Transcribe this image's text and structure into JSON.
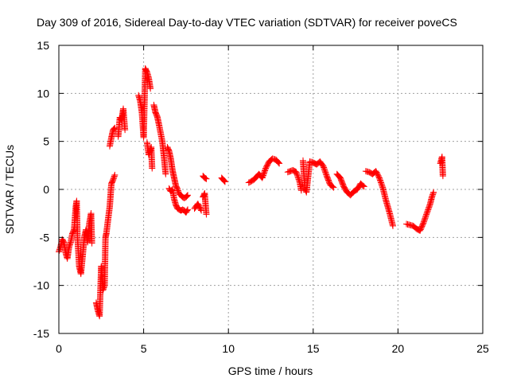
{
  "chart_data": {
    "type": "scatter",
    "title": "Day 309 of 2016, Sidereal Day-to-day VTEC variation (SDTVAR) for receiver poveCS",
    "xlabel": "GPS time / hours",
    "ylabel": "SDTVAR / TECUs",
    "xlim": [
      0,
      25
    ],
    "ylim": [
      -15,
      15
    ],
    "xticks": [
      0,
      5,
      10,
      15,
      20,
      25
    ],
    "yticks": [
      -15,
      -10,
      -5,
      0,
      5,
      10,
      15
    ],
    "xtick_labels": [
      "0",
      "5",
      "10",
      "15",
      "20",
      "25"
    ],
    "ytick_labels": [
      "-15",
      "-10",
      "-5",
      "0",
      "5",
      "10",
      "15"
    ],
    "grid": true,
    "marker": "+",
    "series": [
      {
        "name": "SDTVAR",
        "color": "#ff0000",
        "segments": [
          [
            [
              0.0,
              -6.5
            ],
            [
              0.1,
              -6.0
            ],
            [
              0.2,
              -5.2
            ],
            [
              0.3,
              -5.5
            ],
            [
              0.4,
              -6.6
            ],
            [
              0.5,
              -7.2
            ],
            [
              0.6,
              -6.0
            ],
            [
              0.7,
              -5.5
            ],
            [
              0.8,
              -4.6
            ],
            [
              0.9,
              -4.2
            ],
            [
              1.0,
              -1.8
            ],
            [
              1.05,
              -1.2
            ],
            [
              1.1,
              -5.0
            ],
            [
              1.2,
              -8.0
            ],
            [
              1.3,
              -8.8
            ],
            [
              1.4,
              -7.0
            ],
            [
              1.5,
              -5.0
            ],
            [
              1.6,
              -4.2
            ],
            [
              1.7,
              -5.5
            ],
            [
              1.8,
              -3.5
            ],
            [
              1.9,
              -2.5
            ],
            [
              1.95,
              -5.6
            ]
          ],
          [
            [
              2.2,
              -11.8
            ],
            [
              2.3,
              -12.6
            ],
            [
              2.4,
              -13.2
            ],
            [
              2.5,
              -8.0
            ],
            [
              2.6,
              -10.5
            ],
            [
              2.7,
              -10.0
            ],
            [
              2.75,
              -5.0
            ],
            [
              2.8,
              -4.6
            ],
            [
              2.9,
              -3.2
            ],
            [
              3.0,
              -1.8
            ],
            [
              3.1,
              0.6
            ],
            [
              3.2,
              1.0
            ],
            [
              3.3,
              1.5
            ]
          ],
          [
            [
              3.0,
              4.5
            ],
            [
              3.1,
              5.4
            ],
            [
              3.2,
              6.2
            ],
            [
              3.3,
              6.4
            ]
          ],
          [
            [
              3.5,
              5.5
            ],
            [
              3.6,
              7.5
            ],
            [
              3.7,
              7.2
            ],
            [
              3.8,
              8.4
            ],
            [
              3.9,
              6.2
            ]
          ],
          [
            [
              4.7,
              9.8
            ],
            [
              4.8,
              9.2
            ],
            [
              4.9,
              8.0
            ],
            [
              5.0,
              5.4
            ],
            [
              5.1,
              12.6
            ],
            [
              5.2,
              12.2
            ],
            [
              5.3,
              11.6
            ],
            [
              5.4,
              10.5
            ]
          ],
          [
            [
              5.2,
              4.9
            ],
            [
              5.3,
              3.6
            ],
            [
              5.45,
              4.4
            ],
            [
              5.5,
              2.2
            ]
          ],
          [
            [
              5.6,
              8.8
            ],
            [
              5.7,
              8.0
            ],
            [
              5.8,
              7.6
            ],
            [
              5.9,
              6.8
            ],
            [
              6.0,
              5.9
            ],
            [
              6.1,
              5.0
            ],
            [
              6.2,
              3.4
            ],
            [
              6.3,
              1.6
            ]
          ],
          [
            [
              6.4,
              4.4
            ],
            [
              6.5,
              4.0
            ],
            [
              6.6,
              3.2
            ],
            [
              6.7,
              2.0
            ],
            [
              6.8,
              1.2
            ],
            [
              6.9,
              0.4
            ],
            [
              7.0,
              0.0
            ],
            [
              7.1,
              -0.5
            ],
            [
              7.2,
              -0.6
            ],
            [
              7.3,
              -0.8
            ],
            [
              7.4,
              -0.9
            ],
            [
              7.5,
              -0.8
            ],
            [
              7.6,
              -0.6
            ]
          ],
          [
            [
              6.5,
              0.1
            ],
            [
              6.6,
              -0.2
            ],
            [
              6.7,
              0.0
            ],
            [
              6.8,
              -1.0
            ],
            [
              6.9,
              -1.6
            ],
            [
              7.0,
              -2.0
            ],
            [
              7.1,
              -2.1
            ],
            [
              7.2,
              -2.2
            ],
            [
              7.3,
              -2.1
            ],
            [
              7.4,
              -2.2
            ],
            [
              7.5,
              -2.4
            ],
            [
              7.6,
              -2.1
            ]
          ],
          [
            [
              8.0,
              -2.0
            ],
            [
              8.2,
              -1.5
            ],
            [
              8.4,
              -2.2
            ]
          ],
          [
            [
              8.5,
              -0.8
            ],
            [
              8.6,
              -0.4
            ],
            [
              8.7,
              -2.6
            ]
          ],
          [
            [
              8.5,
              1.4
            ],
            [
              8.6,
              1.2
            ],
            [
              8.7,
              1.1
            ]
          ],
          [
            [
              9.6,
              1.2
            ],
            [
              9.7,
              1.0
            ],
            [
              9.8,
              0.8
            ]
          ],
          [
            [
              11.2,
              0.7
            ],
            [
              11.5,
              1.0
            ],
            [
              11.8,
              1.6
            ],
            [
              12.0,
              1.2
            ],
            [
              12.2,
              2.2
            ],
            [
              12.4,
              2.9
            ],
            [
              12.6,
              3.2
            ],
            [
              12.8,
              3.1
            ],
            [
              13.0,
              2.7
            ]
          ],
          [
            [
              13.5,
              1.8
            ],
            [
              13.8,
              2.0
            ],
            [
              14.0,
              1.8
            ],
            [
              14.2,
              0.8
            ],
            [
              14.3,
              -0.1
            ]
          ],
          [
            [
              14.4,
              3.0
            ],
            [
              14.5,
              0.2
            ],
            [
              14.6,
              -0.3
            ],
            [
              14.8,
              2.9
            ],
            [
              15.0,
              2.8
            ],
            [
              15.2,
              2.6
            ],
            [
              15.4,
              2.9
            ],
            [
              15.6,
              2.4
            ],
            [
              15.8,
              1.4
            ],
            [
              16.0,
              0.5
            ],
            [
              16.2,
              0.2
            ]
          ],
          [
            [
              16.4,
              1.6
            ],
            [
              16.6,
              1.2
            ],
            [
              16.8,
              0.3
            ],
            [
              17.0,
              -0.3
            ],
            [
              17.2,
              -0.6
            ],
            [
              17.4,
              -0.2
            ],
            [
              17.6,
              0.0
            ],
            [
              17.8,
              0.6
            ],
            [
              18.0,
              0.3
            ]
          ],
          [
            [
              18.1,
              1.9
            ],
            [
              18.3,
              1.8
            ],
            [
              18.5,
              1.6
            ],
            [
              18.7,
              1.9
            ],
            [
              18.9,
              1.2
            ],
            [
              19.1,
              0.2
            ],
            [
              19.3,
              -1.2
            ],
            [
              19.5,
              -2.4
            ],
            [
              19.7,
              -3.8
            ]
          ],
          [
            [
              20.5,
              -3.6
            ],
            [
              20.7,
              -3.7
            ],
            [
              20.9,
              -3.8
            ],
            [
              21.1,
              -4.1
            ],
            [
              21.3,
              -4.3
            ],
            [
              21.5,
              -3.5
            ],
            [
              21.6,
              -3.0
            ],
            [
              21.7,
              -2.5
            ],
            [
              21.8,
              -2.0
            ],
            [
              21.9,
              -1.5
            ],
            [
              22.0,
              -0.8
            ],
            [
              22.1,
              -0.3
            ]
          ],
          [
            [
              22.5,
              2.7
            ],
            [
              22.6,
              3.4
            ],
            [
              22.65,
              1.4
            ]
          ]
        ]
      }
    ]
  }
}
